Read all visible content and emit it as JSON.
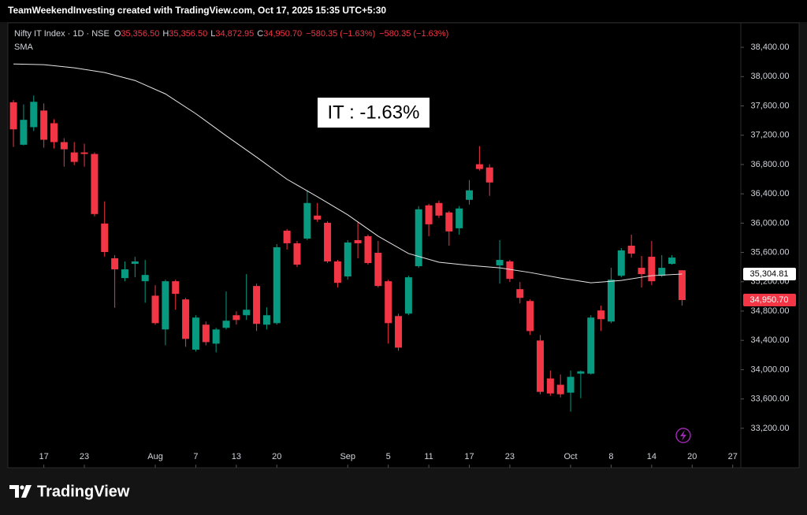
{
  "header": {
    "attribution": "TeamWeekendInvesting created with TradingView.com, Oct 17, 2025 15:35 UTC+5:30"
  },
  "chart_data": {
    "type": "candlestick",
    "title": "Nifty IT Index · 1D · NSE",
    "ohlc_labels": [
      {
        "key": "O",
        "text": "35,356.50"
      },
      {
        "key": "H",
        "text": "35,356.50"
      },
      {
        "key": "L",
        "text": "34,872.95"
      },
      {
        "key": "C",
        "text": "34,950.70"
      }
    ],
    "change_labels": [
      "−580.35 (−1.63%)",
      "−580.35 (−1.63%)"
    ],
    "annotation": "IT : -1.63%",
    "up_color": "#089981",
    "down_color": "#f23645",
    "x": [
      0,
      1,
      2,
      3,
      4,
      5,
      6,
      7,
      8,
      9,
      10,
      11,
      12,
      13,
      14,
      15,
      16,
      17,
      18,
      19,
      20,
      21,
      22,
      23,
      24,
      25,
      26,
      27,
      28,
      29,
      30,
      31,
      32,
      33,
      34,
      35,
      36,
      37,
      38,
      39,
      40,
      41,
      42,
      43,
      44,
      45,
      46,
      47,
      48,
      49,
      50,
      51,
      52,
      53,
      54,
      55,
      56,
      57,
      58,
      59,
      60,
      61,
      62,
      63,
      64,
      65,
      66
    ],
    "open": [
      37650,
      37070,
      37310,
      37537,
      37364,
      37106,
      36965,
      36965,
      36944,
      35995,
      35520,
      35250,
      35444,
      35207,
      35010,
      34549,
      35207,
      34959,
      34273,
      34614,
      34355,
      34571,
      34743,
      34743,
      35142,
      34614,
      34635,
      35897,
      35725,
      35789,
      36103,
      36005,
      35477,
      35272,
      35768,
      35822,
      35595,
      35207,
      34732,
      34765,
      35412,
      36243,
      36275,
      36146,
      35930,
      36318,
      36804,
      36760,
      35423,
      35477,
      35099,
      34937,
      34398,
      33880,
      33794,
      33686,
      33945,
      33945,
      34808,
      34657,
      35282,
      35692,
      35390,
      35541,
      35282,
      35444,
      35356.5
    ],
    "high": [
      37680,
      37620,
      37742,
      37634,
      37418,
      37160,
      37106,
      37084,
      36965,
      36297,
      35563,
      35477,
      35541,
      35498,
      35153,
      35228,
      35228,
      34980,
      34743,
      34657,
      34570,
      35067,
      34797,
      35304,
      35174,
      34851,
      35714,
      35919,
      35757,
      36448,
      36275,
      36027,
      35498,
      35768,
      36016,
      35843,
      35757,
      35228,
      34765,
      35282,
      36232,
      36264,
      36308,
      36167,
      36232,
      36588,
      37052,
      36804,
      35768,
      35498,
      35196,
      34959,
      34474,
      33988,
      33934,
      33988,
      33988,
      34743,
      34873,
      35390,
      35660,
      35843,
      35552,
      35757,
      35563,
      35563,
      35356.5
    ],
    "low": [
      37040,
      37060,
      37257,
      37030,
      37019,
      36771,
      36793,
      36771,
      36092,
      35541,
      34845,
      35207,
      35261,
      34913,
      34613,
      34333,
      34818,
      34312,
      34247,
      34333,
      34236,
      34549,
      34614,
      34678,
      34527,
      34549,
      34614,
      35639,
      35401,
      35768,
      36017,
      35455,
      35121,
      35228,
      35520,
      35433,
      35121,
      34355,
      34258,
      34743,
      35390,
      35822,
      36070,
      35692,
      35843,
      36254,
      36717,
      36372,
      35174,
      35196,
      34905,
      34474,
      33664,
      33643,
      33621,
      33427,
      33610,
      33934,
      34527,
      34635,
      35261,
      35530,
      35121,
      35153,
      35261,
      35433,
      34872.95
    ],
    "close": [
      37280,
      37410,
      37656,
      37138,
      37106,
      37008,
      36836,
      36944,
      36124,
      35606,
      35369,
      35369,
      35477,
      35293,
      34635,
      35207,
      35035,
      34420,
      34711,
      34376,
      34549,
      34668,
      34678,
      34818,
      34625,
      34743,
      35671,
      35725,
      35433,
      36275,
      36049,
      35477,
      35185,
      35736,
      35725,
      35455,
      35142,
      34635,
      34301,
      35261,
      36189,
      35984,
      36103,
      35887,
      36200,
      36448,
      36739,
      36555,
      35498,
      35239,
      34980,
      34527,
      33697,
      33675,
      33664,
      33902,
      33977,
      34711,
      34689,
      35228,
      35628,
      35584,
      35304,
      35207,
      35390,
      35530,
      34950.7
    ],
    "series": [
      {
        "name": "SMA",
        "color": "#e6e6e6",
        "x": [
          0,
          3,
          6,
          9,
          12,
          15,
          18,
          21,
          24,
          27,
          30,
          33,
          36,
          39,
          42,
          45,
          48,
          51,
          54,
          57,
          60,
          63,
          66
        ],
        "values": [
          38173,
          38163,
          38120,
          38055,
          37947,
          37764,
          37494,
          37192,
          36901,
          36599,
          36361,
          36113,
          35822,
          35585,
          35466,
          35423,
          35390,
          35326,
          35250,
          35185,
          35218,
          35283,
          35304.81
        ]
      }
    ],
    "xlim": [
      -0.55,
      71.8
    ],
    "xticks": [
      {
        "value": 3,
        "label": "17"
      },
      {
        "value": 7,
        "label": "23"
      },
      {
        "value": 14,
        "label": "Aug"
      },
      {
        "value": 18,
        "label": "7"
      },
      {
        "value": 22,
        "label": "13"
      },
      {
        "value": 26,
        "label": "20"
      },
      {
        "value": 33,
        "label": "Sep"
      },
      {
        "value": 37,
        "label": "5"
      },
      {
        "value": 41,
        "label": "11"
      },
      {
        "value": 45,
        "label": "17"
      },
      {
        "value": 49,
        "label": "23"
      },
      {
        "value": 55,
        "label": "Oct"
      },
      {
        "value": 59,
        "label": "8"
      },
      {
        "value": 63,
        "label": "14"
      },
      {
        "value": 67,
        "label": "20"
      },
      {
        "value": 71,
        "label": "27"
      }
    ],
    "ylim": [
      32661,
      38734
    ],
    "yticks": [
      {
        "value": 33200,
        "label": "33,200.00"
      },
      {
        "value": 33600,
        "label": "33,600.00"
      },
      {
        "value": 34000,
        "label": "34,000.00"
      },
      {
        "value": 34400,
        "label": "34,400.00"
      },
      {
        "value": 34800,
        "label": "34,800.00"
      },
      {
        "value": 35200,
        "label": "35,200.00"
      },
      {
        "value": 35600,
        "label": "35,600.00"
      },
      {
        "value": 36000,
        "label": "36,000.00"
      },
      {
        "value": 36400,
        "label": "36,400.00"
      },
      {
        "value": 36800,
        "label": "36,800.00"
      },
      {
        "value": 37200,
        "label": "37,200.00"
      },
      {
        "value": 37600,
        "label": "37,600.00"
      },
      {
        "value": 38000,
        "label": "38,000.00"
      },
      {
        "value": 38400,
        "label": "38,400.00"
      }
    ],
    "price_labels": [
      {
        "value": 35304.81,
        "label": "35,304.81",
        "color": "#ffffff",
        "text_color": "#000000"
      },
      {
        "value": 34950.7,
        "label": "34,950.70",
        "color": "#f23645",
        "text_color": "#ffffff"
      }
    ],
    "grid": false
  },
  "footer": {
    "logo": "TradingView"
  }
}
